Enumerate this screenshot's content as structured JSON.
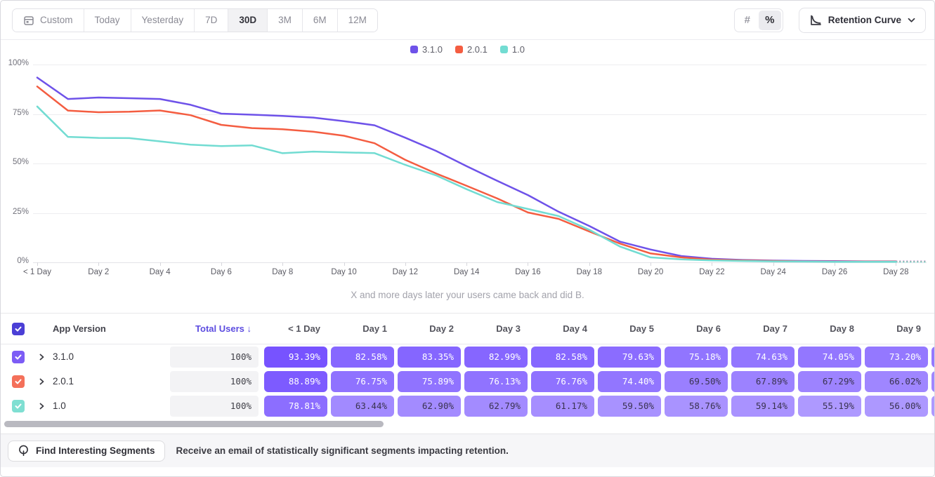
{
  "toolbar": {
    "date_ranges": [
      "Custom",
      "Today",
      "Yesterday",
      "7D",
      "30D",
      "3M",
      "6M",
      "12M"
    ],
    "selected_range": "30D",
    "value_modes": [
      "#",
      "%"
    ],
    "selected_mode": "%",
    "chart_type_label": "Retention Curve"
  },
  "chart_data": {
    "type": "line",
    "caption": "X and more days later your users came back and did B.",
    "x_tick_labels": [
      "< 1 Day",
      "Day 2",
      "Day 4",
      "Day 6",
      "Day 8",
      "Day 10",
      "Day 12",
      "Day 14",
      "Day 16",
      "Day 18",
      "Day 20",
      "Day 22",
      "Day 24",
      "Day 26",
      "Day 28"
    ],
    "x_tick_days": [
      0,
      2,
      4,
      6,
      8,
      10,
      12,
      14,
      16,
      18,
      20,
      22,
      24,
      26,
      28
    ],
    "y_ticks": [
      0,
      25,
      50,
      75,
      100
    ],
    "y_tick_labels": [
      "0%",
      "25%",
      "50%",
      "75%",
      "100%"
    ],
    "ylim": [
      0,
      100
    ],
    "x_days_max": 29,
    "dashed_from_day": 28,
    "legend_position": "top",
    "grid": true,
    "series": [
      {
        "name": "3.1.0",
        "color": "#6e52e9",
        "values": [
          93.39,
          82.58,
          83.35,
          82.99,
          82.58,
          79.63,
          75.18,
          74.63,
          74.05,
          73.2,
          71.4,
          69.3,
          63.0,
          56.4,
          48.6,
          41.2,
          34.0,
          25.6,
          18.4,
          10.5,
          6.5,
          3.2,
          1.8,
          1.2,
          0.9,
          0.7,
          0.6,
          0.5,
          0.5,
          0.5
        ]
      },
      {
        "name": "2.0.1",
        "color": "#f45d41",
        "values": [
          88.89,
          76.75,
          75.89,
          76.13,
          76.76,
          74.4,
          69.5,
          67.89,
          67.29,
          66.02,
          64.0,
          60.2,
          51.8,
          45.0,
          38.7,
          32.3,
          25.2,
          22.0,
          15.6,
          9.5,
          4.5,
          2.5,
          1.4,
          1.0,
          0.7,
          0.5,
          0.4,
          0.4,
          0.4,
          0.4
        ]
      },
      {
        "name": "1.0",
        "color": "#72dcd2",
        "values": [
          78.81,
          63.44,
          62.9,
          62.79,
          61.17,
          59.5,
          58.76,
          59.14,
          55.19,
          56.0,
          55.6,
          55.2,
          49.3,
          44.0,
          37.0,
          30.5,
          27.0,
          23.4,
          16.5,
          8.0,
          2.5,
          1.5,
          1.0,
          0.7,
          0.5,
          0.4,
          0.3,
          0.3,
          0.3,
          0.3
        ]
      }
    ]
  },
  "table": {
    "header": {
      "app_version": "App Version",
      "total_users": "Total Users",
      "sort_arrow": "↓",
      "day_columns": [
        "< 1 Day",
        "Day 1",
        "Day 2",
        "Day 3",
        "Day 4",
        "Day 5",
        "Day 6",
        "Day 7",
        "Day 8",
        "Day 9"
      ],
      "checkbox_color": "#4b3fd6"
    },
    "rows": [
      {
        "version": "3.1.0",
        "checkbox_color": "#7c5cf5",
        "total_users": "100%",
        "cells": [
          "93.39%",
          "82.58%",
          "83.35%",
          "82.99%",
          "82.58%",
          "79.63%",
          "75.18%",
          "74.63%",
          "74.05%",
          "73.20%"
        ]
      },
      {
        "version": "2.0.1",
        "checkbox_color": "#f4705a",
        "total_users": "100%",
        "cells": [
          "88.89%",
          "76.75%",
          "75.89%",
          "76.13%",
          "76.76%",
          "74.40%",
          "69.50%",
          "67.89%",
          "67.29%",
          "66.02%"
        ]
      },
      {
        "version": "1.0",
        "checkbox_color": "#7fdfd2",
        "total_users": "100%",
        "cells": [
          "78.81%",
          "63.44%",
          "62.90%",
          "62.79%",
          "61.17%",
          "59.50%",
          "58.76%",
          "59.14%",
          "55.19%",
          "56.00%"
        ]
      }
    ],
    "cell_base_color": "#6d47ff"
  },
  "footer": {
    "button_label": "Find Interesting Segments",
    "message": "Receive an email of statistically significant segments impacting retention."
  }
}
